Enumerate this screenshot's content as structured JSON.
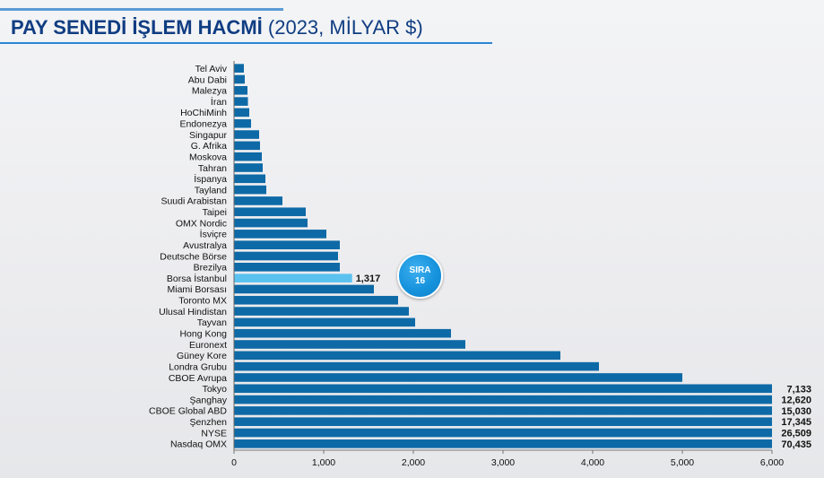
{
  "title": {
    "main": "PAY SENEDİ İŞLEM HACMİ",
    "sub": "(2023, MİLYAR $)"
  },
  "badge": {
    "line1": "SIRA",
    "line2": "16"
  },
  "colors": {
    "bar": "#0e6aa6",
    "highlight_bar": "#5bc2f0",
    "title": "#0f3d82",
    "badge": "#1693dd"
  },
  "chart_data": {
    "type": "bar",
    "orientation": "horizontal",
    "title": "PAY SENEDİ İŞLEM HACMİ (2023, MİLYAR $)",
    "xlabel": "",
    "ylabel": "",
    "xlim": [
      0,
      6000
    ],
    "xticks": [
      "0",
      "1,000",
      "2,000",
      "3,000",
      "4,000",
      "5,000",
      "6,000"
    ],
    "grid": false,
    "legend": "none",
    "highlight": "Borsa İstanbul",
    "categories": [
      "Tel Aviv",
      "Abu Dabi",
      "Malezya",
      "İran",
      "HoChiMinh",
      "Endonezya",
      "Singapur",
      "G. Afrika",
      "Moskova",
      "Tahran",
      "İspanya",
      "Tayland",
      "Suudi Arabistan",
      "Taipei",
      "OMX Nordic",
      "İsviçre",
      "Avustralya",
      "Deutsche Börse",
      "Brezilya",
      "Borsa İstanbul",
      "Miami Borsası",
      "Toronto MX",
      "Ulusal Hindistan",
      "Tayvan",
      "Hong Kong",
      "Euronext",
      "Güney Kore",
      "Londra Grubu",
      "CBOE Avrupa",
      "Tokyo",
      "Şanghay",
      "CBOE Global ABD",
      "Şenzhen",
      "NYSE",
      "Nasdaq OMX"
    ],
    "values": [
      110,
      120,
      150,
      155,
      170,
      190,
      280,
      290,
      310,
      320,
      350,
      360,
      540,
      800,
      820,
      1030,
      1180,
      1160,
      1180,
      1317,
      1560,
      1830,
      1950,
      2020,
      2420,
      2580,
      3640,
      4070,
      5000,
      7133,
      12620,
      15030,
      17345,
      26509,
      70435
    ],
    "data_labels": [
      "",
      "",
      "",
      "",
      "",
      "",
      "",
      "",
      "",
      "",
      "",
      "",
      "",
      "",
      "",
      "",
      "",
      "",
      "",
      "1,317",
      "",
      "",
      "",
      "",
      "",
      "",
      "",
      "",
      "",
      "7,133",
      "12,620",
      "15,030",
      "17,345",
      "26,509",
      "70,435"
    ]
  }
}
